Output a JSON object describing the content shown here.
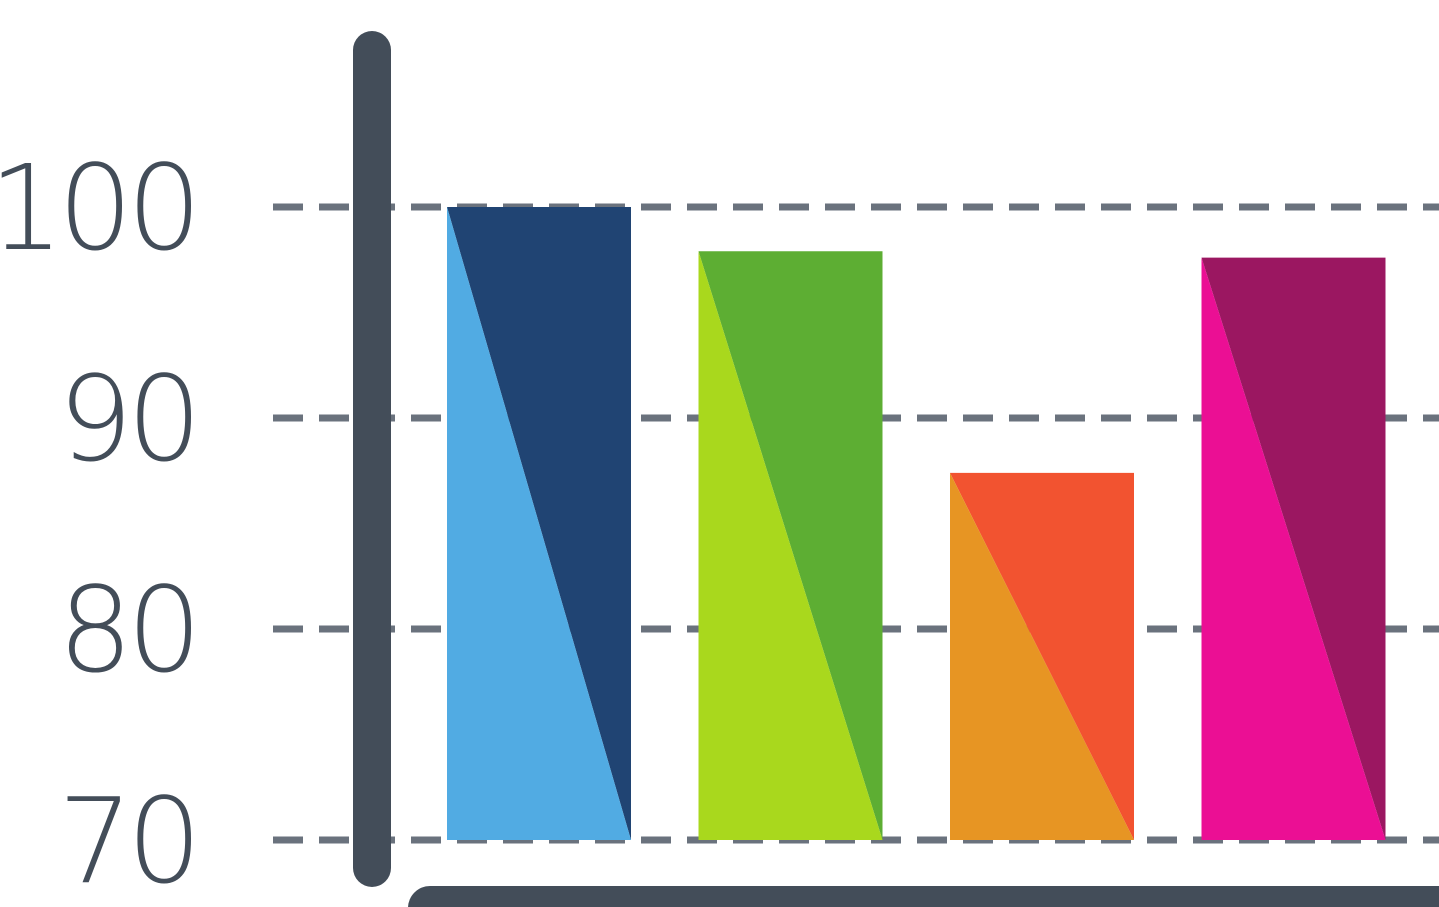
{
  "chart_data": {
    "type": "bar",
    "title": "",
    "xlabel": "",
    "ylabel": "",
    "ylim": [
      70,
      100
    ],
    "yticks": [
      70,
      80,
      90,
      100
    ],
    "grid": true,
    "gridStyle": "dashed",
    "categories": [
      "",
      "",
      "",
      ""
    ],
    "values": [
      100,
      97.9,
      87.4,
      97.6
    ],
    "colors": [
      {
        "light": "#51abe3",
        "dark": "#204473"
      },
      {
        "light": "#a9d81d",
        "dark": "#5dae33"
      },
      {
        "light": "#e79523",
        "dark": "#f25330"
      },
      {
        "light": "#eb0f94",
        "dark": "#9b1761"
      }
    ],
    "axisColor": "#434d59",
    "gridColor": "#6a727d"
  }
}
